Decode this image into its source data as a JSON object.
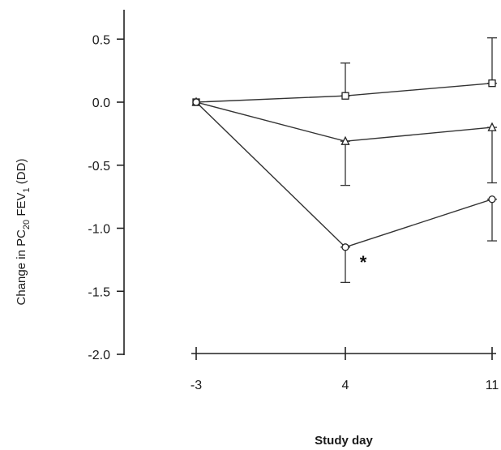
{
  "chart_data": {
    "type": "line",
    "title": "",
    "xlabel": "Study day",
    "ylabel": {
      "prefix": "Change in PC",
      "sub1": "20",
      "mid": " FEV",
      "sub2": "1",
      "suffix": " (DD)"
    },
    "x": [
      -3,
      4,
      11
    ],
    "x_tick_labels": [
      "-3",
      "4",
      "11"
    ],
    "ylim": [
      -2.0,
      0.5
    ],
    "y_ticks": [
      0.5,
      0.0,
      -0.5,
      -1.0,
      -1.5,
      -2.0
    ],
    "y_tick_labels": [
      "0.5",
      "0.0",
      "-0.5",
      "-1.0",
      "-1.5",
      "-2.0"
    ],
    "grid": false,
    "series": [
      {
        "marker": "square",
        "values": [
          0.0,
          0.05,
          0.15
        ],
        "error_upper": [
          0.0,
          0.31,
          0.51
        ],
        "error_lower": [
          0.0,
          0.05,
          0.15
        ]
      },
      {
        "marker": "triangle",
        "values": [
          0.0,
          -0.31,
          -0.2
        ],
        "error_upper": [
          0.0,
          -0.31,
          -0.2
        ],
        "error_lower": [
          0.0,
          -0.66,
          -0.64
        ]
      },
      {
        "marker": "circle",
        "values": [
          0.0,
          -1.15,
          -0.77
        ],
        "error_upper": [
          0.0,
          -1.15,
          -0.77
        ],
        "error_lower": [
          0.0,
          -1.43,
          -1.1
        ]
      }
    ],
    "annotations": [
      {
        "text": "*",
        "series_index": 2,
        "point_index": 1
      }
    ]
  }
}
